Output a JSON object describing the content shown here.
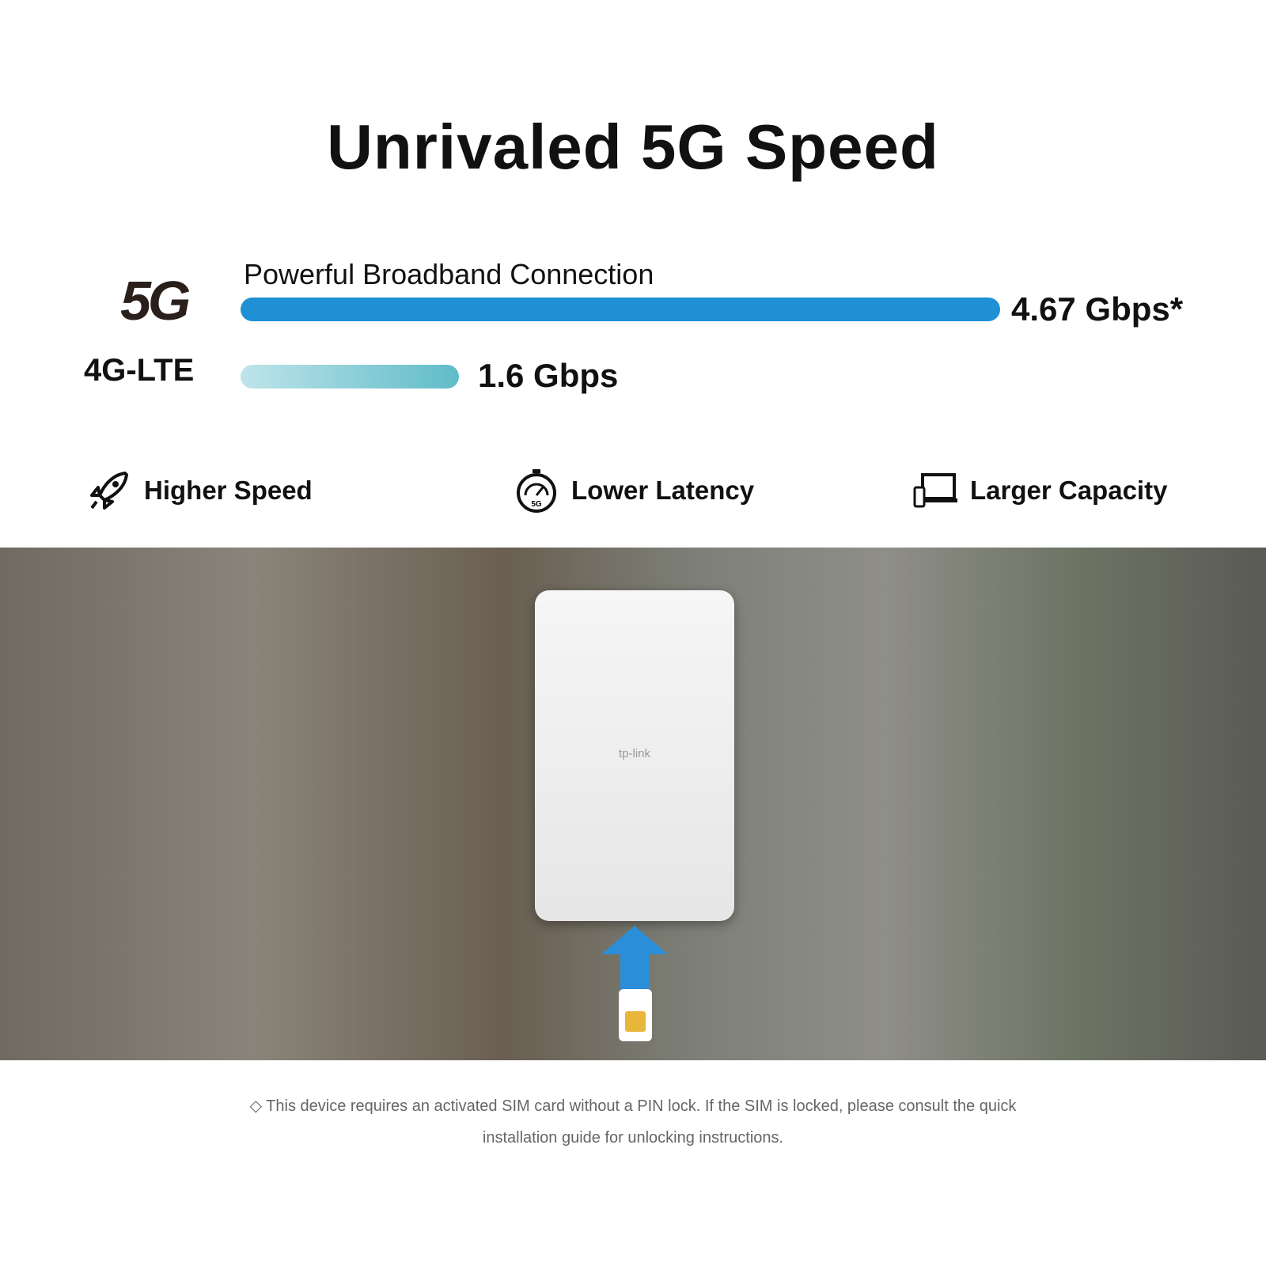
{
  "title": "Unrivaled 5G Speed",
  "chart_data": {
    "type": "bar",
    "orientation": "horizontal",
    "title": "Powerful Broadband Connection",
    "categories": [
      "5G",
      "4G-LTE"
    ],
    "values": [
      4.67,
      1.6
    ],
    "value_labels": [
      "4.67 Gbps*",
      "1.6 Gbps"
    ],
    "unit": "Gbps",
    "colors": [
      "#1f90d4",
      "#5fbcc8"
    ]
  },
  "features": [
    {
      "icon": "rocket-icon",
      "label": "Higher Speed"
    },
    {
      "icon": "stopwatch-icon",
      "label": "Lower Latency"
    },
    {
      "icon": "devices-icon",
      "label": "Larger Capacity"
    }
  ],
  "device_brand": "tp-link",
  "footnote": {
    "line1": "◇ This device requires an activated SIM card without a PIN lock. If the SIM is locked, please consult the quick",
    "line2": "installation guide for unlocking instructions."
  }
}
